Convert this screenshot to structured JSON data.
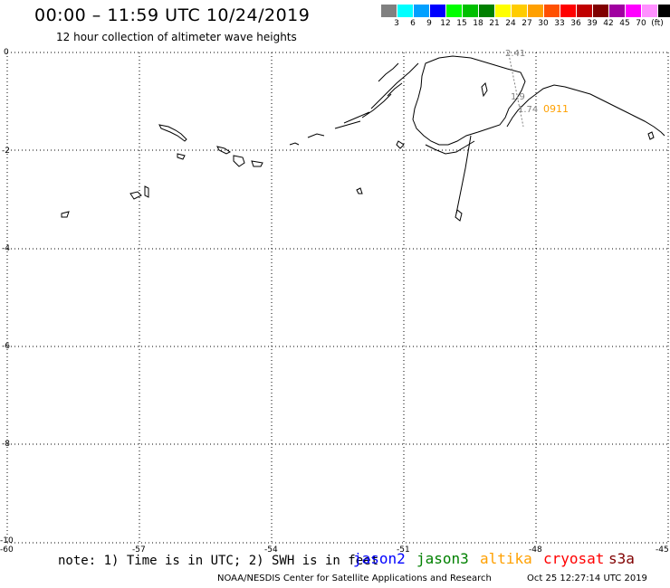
{
  "header": {
    "title": "00:00 – 11:59 UTC 10/24/2019",
    "subtitle": "12 hour collection of altimeter wave heights"
  },
  "legend": {
    "colors": [
      "#808080",
      "#00ffff",
      "#00a0ff",
      "#0000ff",
      "#00ff00",
      "#00c000",
      "#008000",
      "#ffff00",
      "#ffcc00",
      "#ffa000",
      "#ff5000",
      "#ff0000",
      "#c00000",
      "#800000",
      "#a000a0",
      "#ff00ff",
      "#ff90ff",
      "#000000"
    ],
    "labels": [
      "3",
      "6",
      "9",
      "12",
      "15",
      "18",
      "21",
      "24",
      "27",
      "30",
      "33",
      "36",
      "39",
      "42",
      "45",
      "70",
      "(ft)"
    ]
  },
  "map": {
    "lat_labels": [
      "0",
      "-2",
      "-4",
      "-6",
      "-8",
      "-10"
    ],
    "lon_labels": [
      "-60",
      "-57",
      "-54",
      "-51",
      "-48",
      "-45"
    ],
    "annotations": {
      "value_2_41": "2.41",
      "value_1_74": "1.74",
      "value_1_9": "1.9",
      "track_time": "0911"
    },
    "track_color": "#ffa000"
  },
  "footer": {
    "note": "note: 1) Time is in UTC; 2) SWH is in feet",
    "satellites": [
      {
        "name": "jason2",
        "color": "#0000ff"
      },
      {
        "name": "jason3",
        "color": "#008000"
      },
      {
        "name": "altika",
        "color": "#ffa000"
      },
      {
        "name": "cryosat",
        "color": "#ff0000"
      },
      {
        "name": "s3a",
        "color": "#800000"
      }
    ],
    "credit": "NOAA/NESDIS Center for Satellite Applications and Research",
    "timestamp": "Oct 25 12:27:14 UTC 2019"
  }
}
